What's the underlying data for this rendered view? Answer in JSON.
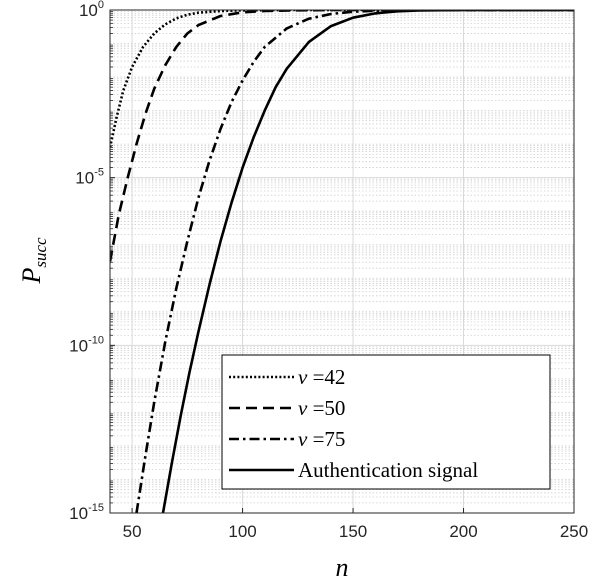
{
  "chart_data": {
    "type": "line",
    "xlabel": "n",
    "ylabel": {
      "base": "P",
      "sub": "succ"
    },
    "xlim": [
      40,
      250
    ],
    "ylim_log10": [
      -15,
      0
    ],
    "y_scale": "log",
    "x_ticks": [
      "50",
      "100",
      "150",
      "200",
      "250"
    ],
    "y_ticks": [
      {
        "base": "10",
        "exp": "0",
        "value": 0
      },
      {
        "base": "10",
        "exp": "-5",
        "value": -5
      },
      {
        "base": "10",
        "exp": "-10",
        "value": -10
      },
      {
        "base": "10",
        "exp": "-15",
        "value": -15
      }
    ],
    "grid": true,
    "legend_position": "bottom-right",
    "series": [
      {
        "name_var": "v",
        "name_rest": " =42",
        "style": "dotted",
        "points": [
          [
            40,
            -4.1
          ],
          [
            43,
            -3.2
          ],
          [
            46,
            -2.4
          ],
          [
            50,
            -1.7
          ],
          [
            55,
            -1.1
          ],
          [
            60,
            -0.7
          ],
          [
            65,
            -0.43
          ],
          [
            70,
            -0.25
          ],
          [
            75,
            -0.14
          ],
          [
            80,
            -0.08
          ],
          [
            90,
            -0.03
          ],
          [
            100,
            -0.01
          ],
          [
            120,
            0
          ],
          [
            250,
            0
          ]
        ]
      },
      {
        "name_var": "v",
        "name_rest": " =50",
        "style": "dashed",
        "points": [
          [
            40,
            -7.5
          ],
          [
            44,
            -6.1
          ],
          [
            48,
            -5.0
          ],
          [
            52,
            -4.0
          ],
          [
            56,
            -3.1
          ],
          [
            60,
            -2.35
          ],
          [
            65,
            -1.65
          ],
          [
            70,
            -1.1
          ],
          [
            75,
            -0.7
          ],
          [
            80,
            -0.45
          ],
          [
            90,
            -0.18
          ],
          [
            100,
            -0.07
          ],
          [
            110,
            -0.03
          ],
          [
            125,
            -0.01
          ],
          [
            140,
            0
          ],
          [
            250,
            0
          ]
        ]
      },
      {
        "name_var": "v",
        "name_rest": " =75",
        "style": "dashdot",
        "points": [
          [
            52,
            -15
          ],
          [
            56,
            -13.3
          ],
          [
            60,
            -11.7
          ],
          [
            65,
            -9.9
          ],
          [
            70,
            -8.3
          ],
          [
            75,
            -6.9
          ],
          [
            80,
            -5.6
          ],
          [
            85,
            -4.5
          ],
          [
            90,
            -3.55
          ],
          [
            95,
            -2.75
          ],
          [
            100,
            -2.1
          ],
          [
            105,
            -1.55
          ],
          [
            110,
            -1.1
          ],
          [
            120,
            -0.55
          ],
          [
            130,
            -0.26
          ],
          [
            140,
            -0.12
          ],
          [
            150,
            -0.05
          ],
          [
            160,
            -0.02
          ],
          [
            180,
            0
          ],
          [
            250,
            0
          ]
        ]
      },
      {
        "name_text": "Authentication signal",
        "style": "solid",
        "points": [
          [
            64,
            -15
          ],
          [
            68,
            -13.5
          ],
          [
            72,
            -12.1
          ],
          [
            76,
            -10.8
          ],
          [
            80,
            -9.6
          ],
          [
            85,
            -8.2
          ],
          [
            90,
            -6.9
          ],
          [
            95,
            -5.75
          ],
          [
            100,
            -4.7
          ],
          [
            105,
            -3.8
          ],
          [
            110,
            -3.0
          ],
          [
            115,
            -2.3
          ],
          [
            120,
            -1.75
          ],
          [
            130,
            -0.95
          ],
          [
            140,
            -0.48
          ],
          [
            150,
            -0.23
          ],
          [
            160,
            -0.1
          ],
          [
            170,
            -0.04
          ],
          [
            180,
            -0.015
          ],
          [
            200,
            0
          ],
          [
            250,
            0
          ]
        ]
      }
    ]
  }
}
